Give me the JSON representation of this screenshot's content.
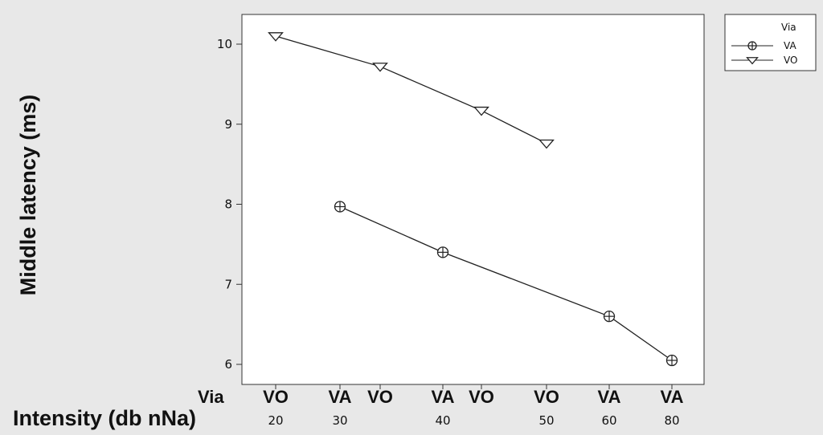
{
  "chart_data": {
    "type": "line",
    "title": "",
    "ylabel": "Middle latency (ms)",
    "xlabel": "Intensity (db nNa)",
    "x_row_label": "Via",
    "ylim": [
      5.9,
      10.4
    ],
    "yticks": [
      6,
      7,
      8,
      9,
      10
    ],
    "x_categories": [
      {
        "via": "VO",
        "intensity": "20"
      },
      {
        "via": "VA",
        "intensity": "30"
      },
      {
        "via": "VO",
        "intensity": ""
      },
      {
        "via": "VA",
        "intensity": "40"
      },
      {
        "via": "VO",
        "intensity": ""
      },
      {
        "via": "VO",
        "intensity": "50"
      },
      {
        "via": "VA",
        "intensity": "60"
      },
      {
        "via": "VA",
        "intensity": "80"
      }
    ],
    "legend": {
      "title": "Via",
      "position": "right, outside plot"
    },
    "series": [
      {
        "name": "VA",
        "marker": "circle-plus",
        "points": [
          [
            1,
            7.97
          ],
          [
            3,
            7.4
          ],
          [
            6,
            6.6
          ],
          [
            7,
            6.05
          ]
        ]
      },
      {
        "name": "VO",
        "marker": "triangle-down",
        "points": [
          [
            0,
            10.1
          ],
          [
            2,
            9.72
          ],
          [
            4,
            9.17
          ],
          [
            5,
            8.76
          ]
        ]
      }
    ],
    "grid": false
  }
}
